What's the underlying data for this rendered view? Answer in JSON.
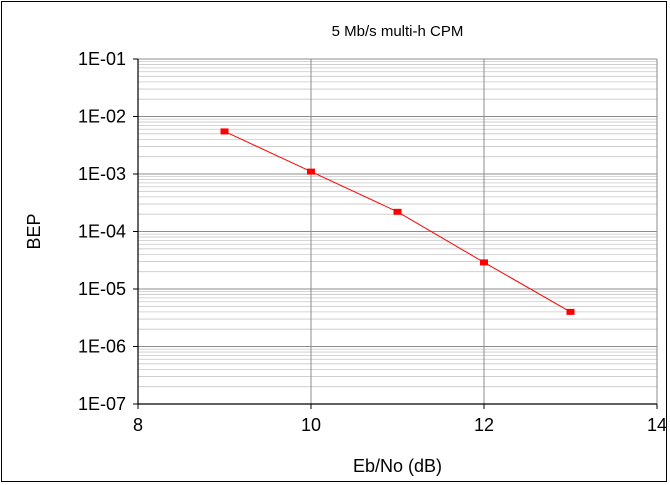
{
  "chart_data": {
    "type": "line",
    "title": "5 Mb/s multi-h CPM",
    "xlabel": "Eb/No (dB)",
    "ylabel": "BEP",
    "xlim": [
      8,
      14
    ],
    "ylim": [
      1e-07,
      0.1
    ],
    "y_scale": "log",
    "grid": true,
    "legend": "none",
    "x_ticks": [
      "8",
      "10",
      "12",
      "14"
    ],
    "y_ticks": [
      "1E-01",
      "1E-02",
      "1E-03",
      "1E-04",
      "1E-05",
      "1E-06",
      "1E-07"
    ],
    "series": [
      {
        "x": [
          9,
          10,
          11,
          12,
          13
        ],
        "y": [
          0.0055,
          0.0011,
          0.00022,
          2.9e-05,
          4e-06
        ],
        "color": "#ff0000",
        "marker": "square"
      }
    ]
  }
}
